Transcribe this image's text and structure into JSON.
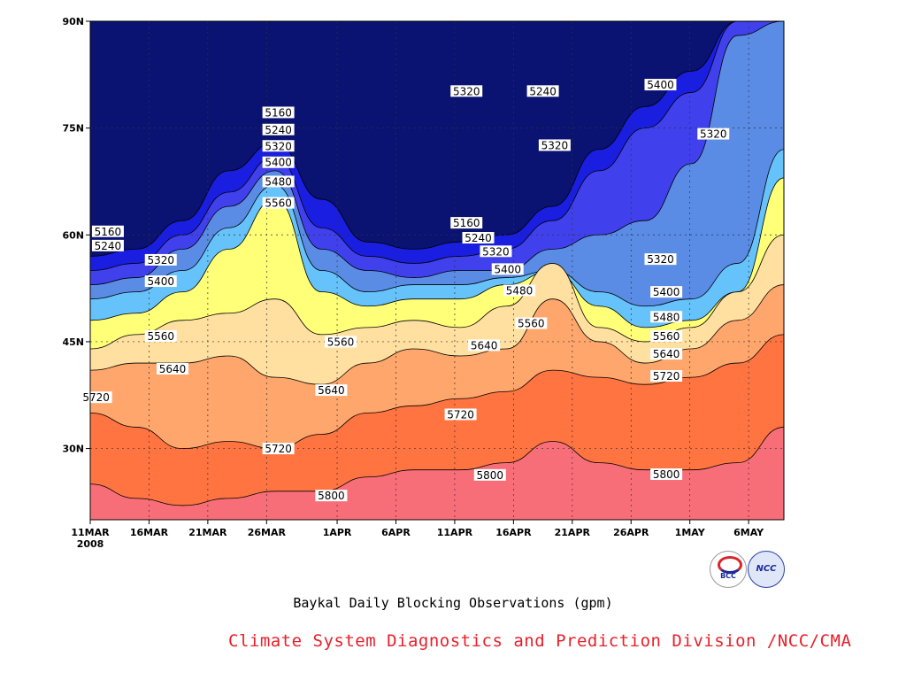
{
  "chart_data": {
    "type": "contour",
    "title": "Baykal Daily Blocking Observations (gpm)",
    "credit": "Climate System Diagnostics and Prediction Division /NCC/CMA",
    "x_ticks": [
      "11MAR",
      "16MAR",
      "21MAR",
      "26MAR",
      "1APR",
      "6APR",
      "11APR",
      "16APR",
      "21APR",
      "26APR",
      "1MAY",
      "6MAY"
    ],
    "x_year": "2008",
    "y_ticks": [
      "30N",
      "45N",
      "60N",
      "75N",
      "90N"
    ],
    "y_values": [
      30,
      45,
      60,
      75,
      90
    ],
    "ylim": [
      20,
      90
    ],
    "x_days": [
      0,
      5,
      10,
      15,
      21,
      26,
      31,
      36,
      41,
      46,
      51,
      56
    ],
    "xlim": [
      0,
      59
    ],
    "contour_levels": [
      5160,
      5240,
      5320,
      5400,
      5480,
      5560,
      5640,
      5720,
      5800
    ],
    "fill_colors": [
      "#0a1272",
      "#1a1ee0",
      "#4040ec",
      "#5a8ce6",
      "#66c2fa",
      "#ffff78",
      "#ffe0a0",
      "#ffa66c",
      "#ff7440",
      "#f86e78"
    ],
    "bands": [
      {
        "low": null,
        "high": 5160,
        "boundary_lat": [
          57,
          58,
          62,
          69,
          73,
          65,
          59,
          58,
          59,
          60,
          64,
          72,
          78,
          83,
          90,
          90
        ]
      },
      {
        "low": 5160,
        "high": 5240,
        "boundary_lat": [
          55,
          56,
          60,
          66,
          71,
          61,
          57,
          56,
          57,
          58,
          62,
          69,
          75,
          80,
          90,
          90
        ]
      },
      {
        "low": 5240,
        "high": 5320,
        "boundary_lat": [
          53,
          54,
          58,
          64,
          69,
          58,
          55,
          54,
          55,
          55,
          58,
          60,
          62,
          70,
          88,
          90
        ]
      },
      {
        "low": 5320,
        "high": 5400,
        "boundary_lat": [
          51,
          52,
          55,
          61,
          67,
          55,
          52,
          53,
          53,
          54,
          55,
          52,
          50,
          51,
          56,
          72
        ]
      },
      {
        "low": 5400,
        "high": 5480,
        "boundary_lat": [
          48,
          49,
          52,
          58,
          65,
          52,
          50,
          51,
          51,
          53,
          55,
          50,
          47,
          48,
          52,
          68
        ]
      },
      {
        "low": 5480,
        "high": 5560,
        "boundary_lat": [
          44,
          46,
          48,
          49,
          51,
          46,
          47,
          48,
          47,
          50,
          56,
          47,
          45,
          47,
          52,
          60
        ]
      },
      {
        "low": 5560,
        "high": 5640,
        "boundary_lat": [
          41,
          42,
          42,
          43,
          40,
          39,
          42,
          44,
          43,
          44,
          51,
          45,
          42,
          44,
          48,
          53
        ]
      },
      {
        "low": 5640,
        "high": 5720,
        "boundary_lat": [
          35,
          33,
          30,
          31,
          30,
          32,
          35,
          36,
          37,
          38,
          41,
          40,
          39,
          40,
          42,
          46
        ]
      },
      {
        "low": 5720,
        "high": 5800,
        "boundary_lat": [
          25,
          23,
          22,
          23,
          24,
          24,
          26,
          27,
          27,
          28,
          31,
          28,
          27,
          27,
          28,
          33
        ]
      }
    ],
    "contour_labels": [
      {
        "text": "5160",
        "day": 1.5,
        "lat": 60.5
      },
      {
        "text": "5240",
        "day": 1.5,
        "lat": 58.5
      },
      {
        "text": "5320",
        "day": 6,
        "lat": 56.5
      },
      {
        "text": "5400",
        "day": 6,
        "lat": 53.5
      },
      {
        "text": "5560",
        "day": 6,
        "lat": 45.8
      },
      {
        "text": "5640",
        "day": 7,
        "lat": 41.2
      },
      {
        "text": "5720",
        "day": 0.5,
        "lat": 37.2
      },
      {
        "text": "5160",
        "day": 16,
        "lat": 77.2
      },
      {
        "text": "5240",
        "day": 16,
        "lat": 74.8
      },
      {
        "text": "5320",
        "day": 16,
        "lat": 72.5
      },
      {
        "text": "5400",
        "day": 16,
        "lat": 70.2
      },
      {
        "text": "5480",
        "day": 16,
        "lat": 67.5
      },
      {
        "text": "5560",
        "day": 16,
        "lat": 64.5
      },
      {
        "text": "5720",
        "day": 16,
        "lat": 30.0
      },
      {
        "text": "5560",
        "day": 21.3,
        "lat": 45.0
      },
      {
        "text": "5640",
        "day": 20.5,
        "lat": 38.2
      },
      {
        "text": "5800",
        "day": 20.5,
        "lat": 23.4
      },
      {
        "text": "5320",
        "day": 32,
        "lat": 80.2
      },
      {
        "text": "5240",
        "day": 38.5,
        "lat": 80.2
      },
      {
        "text": "5320",
        "day": 39.5,
        "lat": 72.6
      },
      {
        "text": "5160",
        "day": 32,
        "lat": 61.7
      },
      {
        "text": "5240",
        "day": 33,
        "lat": 59.6
      },
      {
        "text": "5320",
        "day": 34.5,
        "lat": 57.7
      },
      {
        "text": "5400",
        "day": 35.5,
        "lat": 55.2
      },
      {
        "text": "5480",
        "day": 36.5,
        "lat": 52.2
      },
      {
        "text": "5560",
        "day": 37.5,
        "lat": 47.6
      },
      {
        "text": "5640",
        "day": 33.5,
        "lat": 44.5
      },
      {
        "text": "5720",
        "day": 31.5,
        "lat": 34.8
      },
      {
        "text": "5800",
        "day": 34,
        "lat": 26.3
      },
      {
        "text": "5400",
        "day": 48.5,
        "lat": 81.1
      },
      {
        "text": "5320",
        "day": 53,
        "lat": 74.2
      },
      {
        "text": "5320",
        "day": 48.5,
        "lat": 56.6
      },
      {
        "text": "5400",
        "day": 49,
        "lat": 52.0
      },
      {
        "text": "5480",
        "day": 49,
        "lat": 48.5
      },
      {
        "text": "5560",
        "day": 49,
        "lat": 45.8
      },
      {
        "text": "5640",
        "day": 49,
        "lat": 43.3
      },
      {
        "text": "5720",
        "day": 49,
        "lat": 40.2
      },
      {
        "text": "5800",
        "day": 49,
        "lat": 26.4
      }
    ]
  }
}
